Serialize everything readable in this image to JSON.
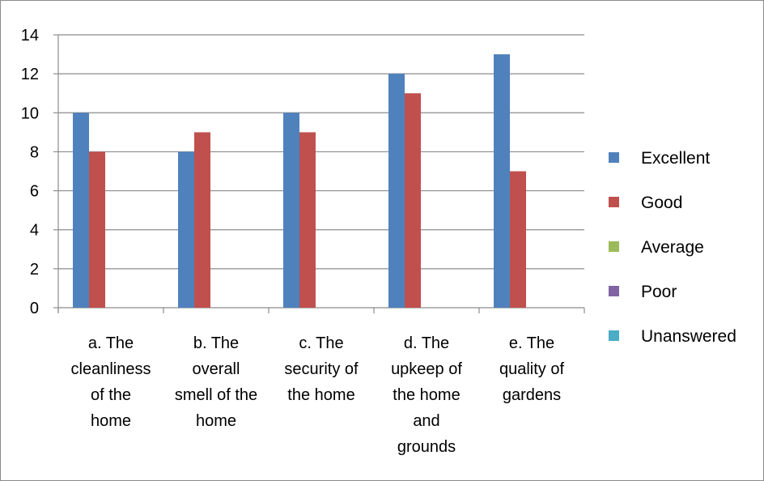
{
  "chart_data": {
    "type": "bar",
    "title": "",
    "xlabel": "",
    "ylabel": "",
    "categories": [
      [
        "a. The",
        "cleanliness",
        "of the",
        "home"
      ],
      [
        "b. The",
        "overall",
        "smell of the",
        "home"
      ],
      [
        "c. The",
        "security of",
        "the home"
      ],
      [
        "d. The",
        "upkeep of",
        "the home",
        "and",
        "grounds"
      ],
      [
        "e. The",
        "quality of",
        "gardens"
      ]
    ],
    "series": [
      {
        "name": "Excellent",
        "color": "#4f81bd",
        "values": [
          10,
          8,
          10,
          12,
          13
        ]
      },
      {
        "name": "Good",
        "color": "#c0504d",
        "values": [
          8,
          9,
          9,
          11,
          7
        ]
      },
      {
        "name": "Average",
        "color": "#9bbb59",
        "values": [
          0,
          0,
          0,
          0,
          0
        ]
      },
      {
        "name": "Poor",
        "color": "#8064a2",
        "values": [
          0,
          0,
          0,
          0,
          0
        ]
      },
      {
        "name": "Unanswered",
        "color": "#4bacc6",
        "values": [
          0,
          0,
          0,
          0,
          0
        ]
      }
    ],
    "ylim": [
      0,
      14
    ],
    "yticks": [
      0,
      2,
      4,
      6,
      8,
      10,
      12,
      14
    ],
    "grid": true,
    "legend": "right"
  }
}
